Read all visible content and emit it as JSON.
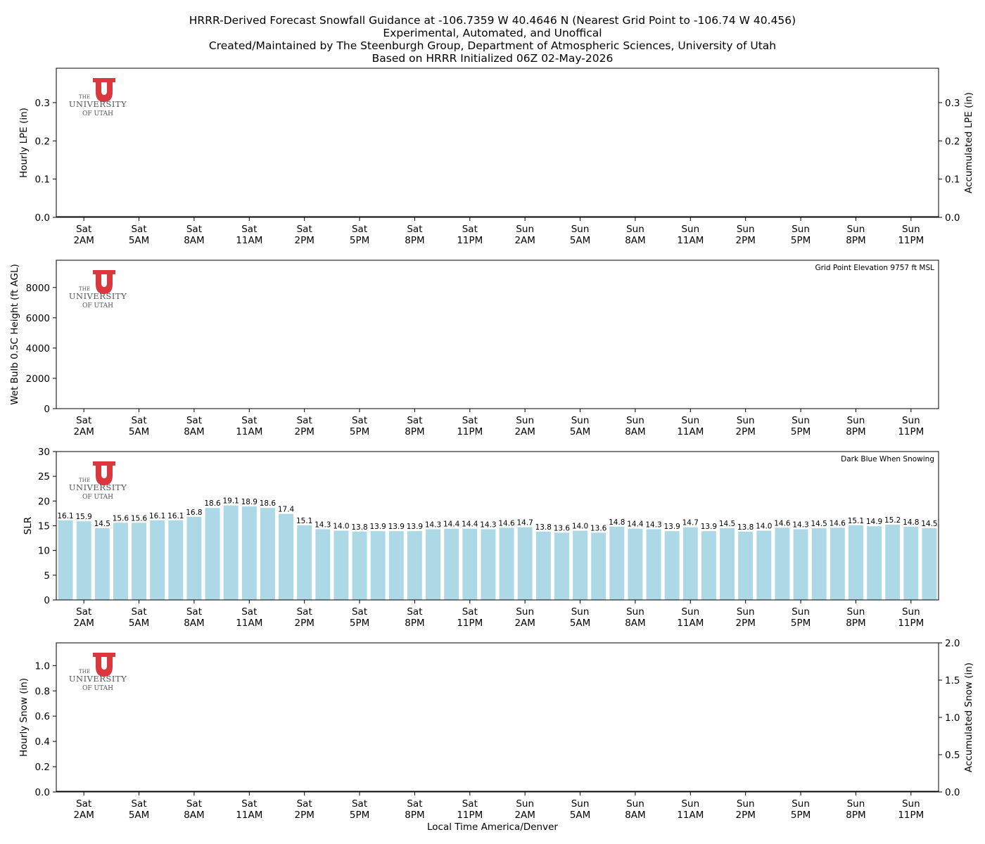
{
  "title": {
    "line1": "HRRR-Derived Forecast Snowfall Guidance at -106.7359 W 40.4646 N (Nearest Grid Point to -106.74 W 40.456)",
    "line2": "Experimental, Automated, and Unoffical",
    "line3": "Created/Maintained by The Steenburgh Group, Department of Atmospheric Sciences, University of Utah",
    "line4": "Based on HRRR Initialized 06Z 02-May-2026"
  },
  "xlabel": "Local Time America/Denver",
  "logo": {
    "line1": "THE",
    "line2": "UNIVERSITY",
    "line3": "OF UTAH",
    "color": "#d9393e"
  },
  "x_tick_labels": [
    [
      "Sat",
      "2AM"
    ],
    [
      "Sat",
      "5AM"
    ],
    [
      "Sat",
      "8AM"
    ],
    [
      "Sat",
      "11AM"
    ],
    [
      "Sat",
      "2PM"
    ],
    [
      "Sat",
      "5PM"
    ],
    [
      "Sat",
      "8PM"
    ],
    [
      "Sat",
      "11PM"
    ],
    [
      "Sun",
      "2AM"
    ],
    [
      "Sun",
      "5AM"
    ],
    [
      "Sun",
      "8AM"
    ],
    [
      "Sun",
      "11AM"
    ],
    [
      "Sun",
      "2PM"
    ],
    [
      "Sun",
      "5PM"
    ],
    [
      "Sun",
      "8PM"
    ],
    [
      "Sun",
      "11PM"
    ]
  ],
  "chart_data": [
    {
      "type": "bar",
      "panel": "lpe",
      "ylabel": "Hourly LPE (in)",
      "ylabel_right": "Accumulated LPE (in)",
      "ylim": [
        0,
        0.39
      ],
      "yticks": [
        0.0,
        0.1,
        0.2,
        0.3
      ],
      "ytick_labels": [
        "0.0",
        "0.1",
        "0.2",
        "0.3"
      ],
      "yticks_right": [
        0.0,
        0.1,
        0.2,
        0.3
      ],
      "ytick_labels_right": [
        "0.0",
        "0.1",
        "0.2",
        "0.3"
      ],
      "series": [
        {
          "values": []
        }
      ]
    },
    {
      "type": "bar",
      "panel": "wetbulb",
      "ylabel": "Wet Bulb 0.5C Height (ft AGL)",
      "ylim": [
        0,
        9800
      ],
      "yticks": [
        0,
        2000,
        4000,
        6000,
        8000
      ],
      "ytick_labels": [
        "0",
        "2000",
        "4000",
        "6000",
        "8000"
      ],
      "annotation": "Grid Point Elevation 9757 ft MSL",
      "series": [
        {
          "values": []
        }
      ]
    },
    {
      "type": "bar",
      "panel": "slr",
      "ylabel": "SLR",
      "ylim": [
        0,
        30
      ],
      "yticks": [
        0,
        5,
        10,
        15,
        20,
        25,
        30
      ],
      "ytick_labels": [
        "0",
        "5",
        "10",
        "15",
        "20",
        "25",
        "30"
      ],
      "annotation": "Dark Blue When Snowing",
      "bar_color": "#add8e6",
      "values": [
        16.1,
        15.9,
        14.5,
        15.6,
        15.6,
        16.1,
        16.1,
        16.8,
        18.6,
        19.1,
        18.9,
        18.6,
        17.4,
        15.1,
        14.3,
        14.0,
        13.8,
        13.9,
        13.9,
        13.9,
        14.3,
        14.4,
        14.4,
        14.3,
        14.6,
        14.7,
        13.8,
        13.6,
        14.0,
        13.6,
        14.8,
        14.4,
        14.3,
        13.9,
        14.7,
        13.9,
        14.5,
        13.8,
        14.0,
        14.6,
        14.3,
        14.5,
        14.6,
        15.1,
        14.9,
        15.2,
        14.8,
        14.5
      ],
      "labels": [
        "16.1",
        "15.9",
        "14.5",
        "15.6",
        "15.6",
        "16.1",
        "16.1",
        "16.8",
        "18.6",
        "19.1",
        "18.9",
        "18.6",
        "17.4",
        "15.1",
        "14.3",
        "14.0",
        "13.8",
        "13.9",
        "13.9",
        "13.9",
        "14.3",
        "14.4",
        "14.4",
        "14.3",
        "14.6",
        "14.7",
        "13.8",
        "13.6",
        "14.0",
        "13.6",
        "14.8",
        "14.4",
        "14.3",
        "13.9",
        "14.7",
        "13.9",
        "14.5",
        "13.8",
        "14.0",
        "14.6",
        "14.3",
        "14.5",
        "14.6",
        "15.1",
        "14.9",
        "15.2",
        "14.8",
        "14.5"
      ]
    },
    {
      "type": "bar",
      "panel": "snow",
      "ylabel": "Hourly Snow (in)",
      "ylabel_right": "Accumulated Snow (in)",
      "ylim": [
        0,
        1.18
      ],
      "yticks": [
        0.0,
        0.2,
        0.4,
        0.6,
        0.8,
        1.0
      ],
      "ytick_labels": [
        "0.0",
        "0.2",
        "0.4",
        "0.6",
        "0.8",
        "1.0"
      ],
      "ylim_right": [
        0,
        2.0
      ],
      "yticks_right": [
        0.0,
        0.5,
        1.0,
        1.5,
        2.0
      ],
      "ytick_labels_right": [
        "0.0",
        "0.5",
        "1.0",
        "1.5",
        "2.0"
      ],
      "series": [
        {
          "values": []
        }
      ]
    }
  ]
}
